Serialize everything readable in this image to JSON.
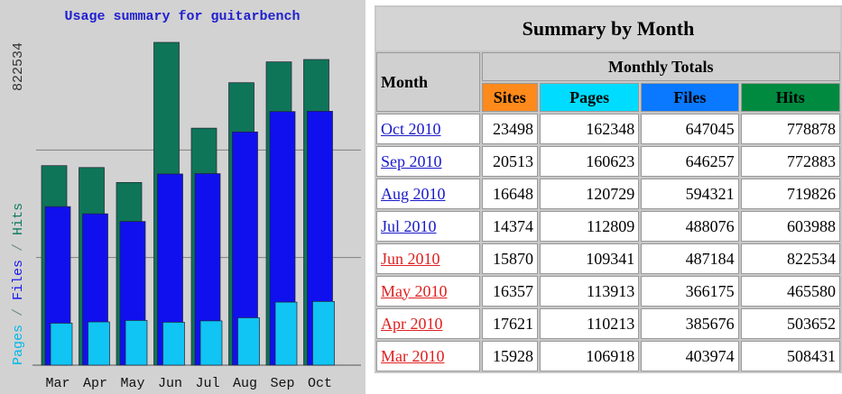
{
  "chart_data": {
    "type": "bar",
    "title": "Usage summary for guitarbench",
    "ylabel_parts": [
      {
        "text": "Pages",
        "color": "#00b8e8"
      },
      {
        "text": " / ",
        "color": "#6a8a8a"
      },
      {
        "text": "Files",
        "color": "#1a1af0"
      },
      {
        "text": " / ",
        "color": "#6a8a8a"
      },
      {
        "text": "Hits",
        "color": "#107a60"
      }
    ],
    "categories": [
      "Mar",
      "Apr",
      "May",
      "Jun",
      "Jul",
      "Aug",
      "Sep",
      "Oct"
    ],
    "series": [
      {
        "name": "Hits",
        "color": "#0f7558",
        "values": [
          508431,
          503652,
          465580,
          822534,
          603988,
          719826,
          772883,
          778878
        ]
      },
      {
        "name": "Files",
        "color": "#1010ee",
        "values": [
          403974,
          385676,
          366175,
          487184,
          488076,
          594321,
          646257,
          647045
        ]
      },
      {
        "name": "Pages",
        "color": "#10c4f4",
        "values": [
          106918,
          110213,
          113913,
          109341,
          112809,
          120729,
          160623,
          162348
        ]
      }
    ],
    "ylim": [
      0,
      822534
    ],
    "yticks": [
      822534
    ],
    "grid": true
  },
  "table": {
    "title": "Summary by Month",
    "month_header": "Month",
    "group_header": "Monthly Totals",
    "columns": [
      {
        "name": "Sites",
        "color": "#ff8a1c"
      },
      {
        "name": "Pages",
        "color": "#00dcff"
      },
      {
        "name": "Files",
        "color": "#0a78ff"
      },
      {
        "name": "Hits",
        "color": "#008a40"
      }
    ],
    "rows": [
      {
        "month": "Oct 2010",
        "color": "#1a1ac8",
        "cells": [
          23498,
          162348,
          647045,
          778878
        ]
      },
      {
        "month": "Sep 2010",
        "color": "#1a1ac8",
        "cells": [
          20513,
          160623,
          646257,
          772883
        ]
      },
      {
        "month": "Aug 2010",
        "color": "#1a1ac8",
        "cells": [
          16648,
          120729,
          594321,
          719826
        ]
      },
      {
        "month": "Jul 2010",
        "color": "#1a1ac8",
        "cells": [
          14374,
          112809,
          488076,
          603988
        ]
      },
      {
        "month": "Jun 2010",
        "color": "#e02020",
        "cells": [
          15870,
          109341,
          487184,
          822534
        ]
      },
      {
        "month": "May 2010",
        "color": "#e02020",
        "cells": [
          16357,
          113913,
          366175,
          465580
        ]
      },
      {
        "month": "Apr 2010",
        "color": "#e02020",
        "cells": [
          17621,
          110213,
          385676,
          503652
        ]
      },
      {
        "month": "Mar 2010",
        "color": "#e02020",
        "cells": [
          15928,
          106918,
          403974,
          508431
        ]
      }
    ]
  }
}
